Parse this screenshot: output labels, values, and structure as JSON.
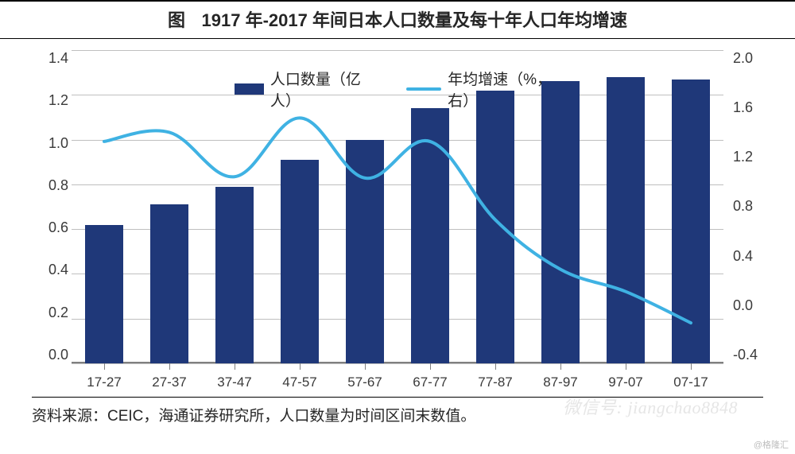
{
  "title": {
    "prefix": "图",
    "text": "1917 年-2017 年间日本人口数量及每十年人口年均增速"
  },
  "legend": {
    "bar_label": "人口数量（亿人）",
    "line_label": "年均增速（%，右）"
  },
  "chart": {
    "type": "bar+line-dual-axis",
    "categories": [
      "17-27",
      "27-37",
      "37-47",
      "47-57",
      "57-67",
      "67-77",
      "77-87",
      "87-97",
      "97-07",
      "07-17"
    ],
    "bar_values": [
      0.62,
      0.71,
      0.79,
      0.91,
      1.0,
      1.14,
      1.22,
      1.26,
      1.28,
      1.27
    ],
    "line_values": [
      1.3,
      1.37,
      1.03,
      1.48,
      1.02,
      1.3,
      0.7,
      0.32,
      0.15,
      -0.09
    ],
    "left_axis": {
      "min": 0.0,
      "max": 1.4,
      "step": 0.2,
      "decimals": 1
    },
    "right_axis": {
      "min": -0.4,
      "max": 2.0,
      "step": 0.4,
      "decimals": 1
    },
    "bar_color": "#1f3879",
    "line_color": "#3fb2e3",
    "line_width": 4,
    "grid_color": "#bfbfbf",
    "axis_color": "#808080",
    "background": "#ffffff",
    "bar_width_ratio": 0.58,
    "tick_fontsize": 18,
    "xlabel_fontsize": 17,
    "legend_fontsize": 19
  },
  "source": "资料来源：CEIC，海通证券研究所，人口数量为时间区间末数值。",
  "watermarks": {
    "wechat": "微信号: jiangchao8848",
    "corner": "@格隆汇"
  }
}
